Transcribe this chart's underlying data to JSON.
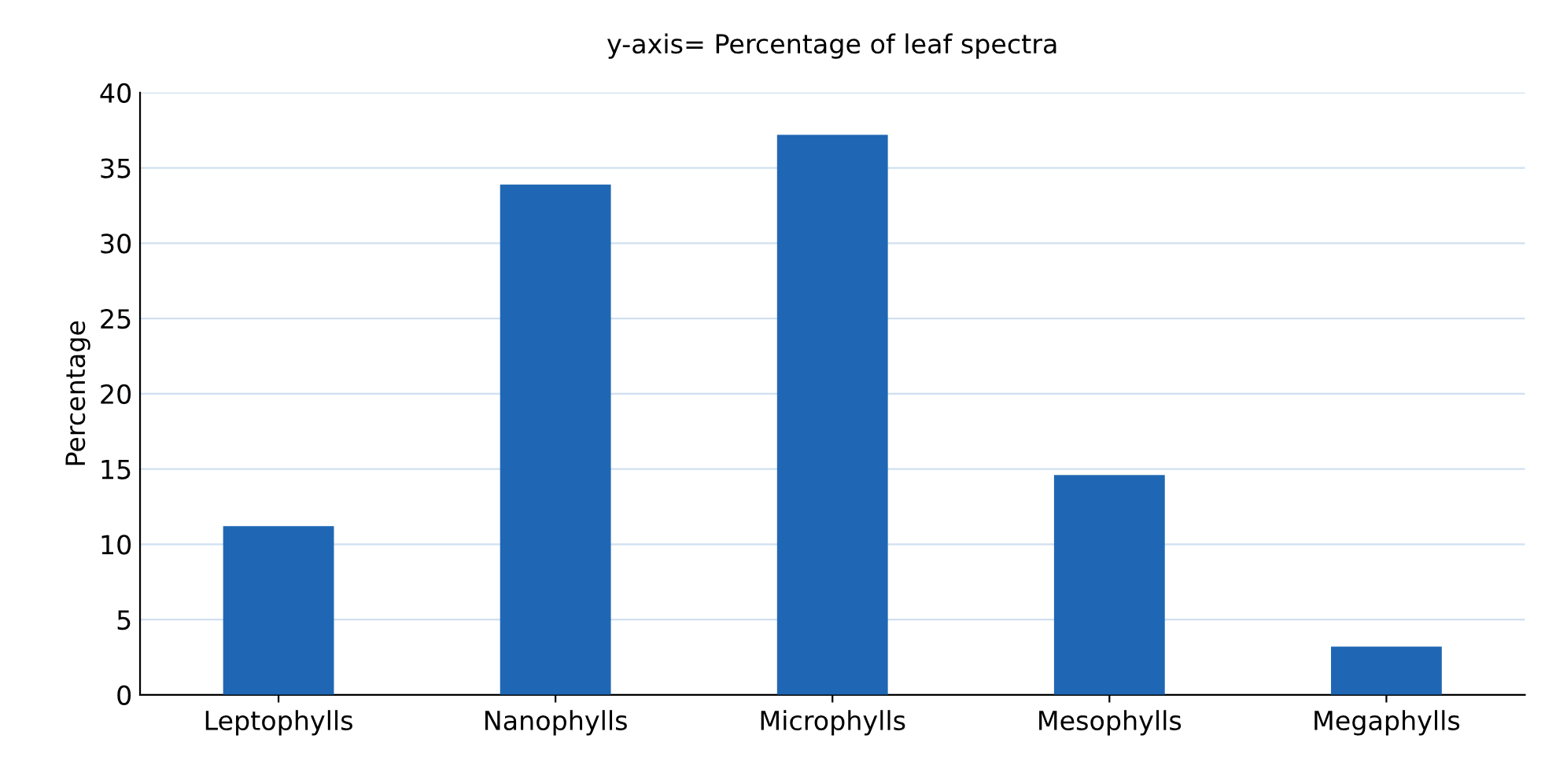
{
  "chart_data": {
    "type": "bar",
    "title": "y-axis= Percentage of leaf spectra",
    "ylabel": "Percentage",
    "categories": [
      "Leptophylls",
      "Nanophylls",
      "Microphylls",
      "Mesophylls",
      "Megaphylls"
    ],
    "values": [
      11.2,
      33.9,
      37.2,
      14.6,
      3.2
    ],
    "color": "#1f67b4",
    "ylim": [
      0,
      40
    ],
    "yticks": [
      0,
      5,
      10,
      15,
      20,
      25,
      30,
      35,
      40
    ],
    "grid": "y"
  }
}
